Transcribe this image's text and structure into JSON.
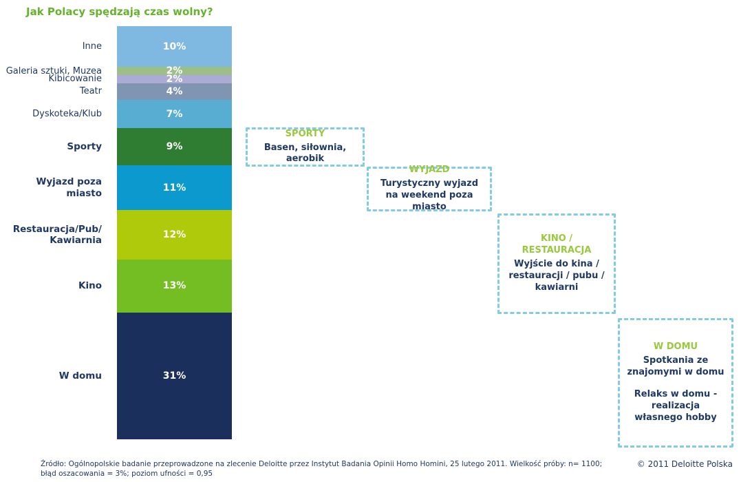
{
  "page": {
    "title": "Jak Polacy spędzają czas wolny?",
    "copyright": "© 2011 Deloitte Polska",
    "footer_line1": "Źródło: Ogólnopolskie badanie przeprowadzone na zlecenie Deloitte przez Instytut Badania Opinii Homo Homini, 25 lutego 2011. Wielkość próby: n= 1100;",
    "footer_line2": "błąd oszacowania = 3%; poziom ufności = 0,95"
  },
  "colors": {
    "title_green": "#66B22E",
    "callout_title_green": "#98C93C",
    "text_navy": "#1F3864",
    "callout_border_blue": "#82CBE5",
    "value_label_white": "#FFFFFF"
  },
  "chart_data": {
    "type": "bar",
    "subtype": "stacked_single_column",
    "orientation": "vertical",
    "order": "top_to_bottom",
    "title": "Jak Polacy spędzają czas wolny?",
    "unit": "%",
    "total_percent": 101,
    "segments": [
      {
        "label": "Inne",
        "value": 10,
        "color": "#7FB9E2",
        "bold": false
      },
      {
        "label": "Galeria sztuki, Muzea",
        "value": 2,
        "color": "#9CBF88",
        "bold": false
      },
      {
        "label": "Kibicowanie",
        "value": 2,
        "color": "#ACABD5",
        "bold": false
      },
      {
        "label": "Teatr",
        "value": 4,
        "color": "#8095B1",
        "bold": false
      },
      {
        "label": "Dyskoteka/Klub",
        "value": 7,
        "color": "#58ADD3",
        "bold": false
      },
      {
        "label": "Sporty",
        "value": 9,
        "color": "#2F7D32",
        "bold": true
      },
      {
        "label": "Wyjazd poza\nmiasto",
        "value": 11,
        "color": "#0C99CE",
        "bold": true
      },
      {
        "label": "Restauracja/Pub/\nKawiarnia",
        "value": 12,
        "color": "#AFCA0A",
        "bold": true
      },
      {
        "label": "Kino",
        "value": 13,
        "color": "#74BE24",
        "bold": true
      },
      {
        "label": "W domu",
        "value": 31,
        "color": "#1A2F5B",
        "bold": true
      }
    ]
  },
  "callouts": [
    {
      "title": "SPORTY",
      "body": [
        "Basen, siłownia, aerobik"
      ]
    },
    {
      "title": "WYJAZD",
      "body": [
        "Turystyczny wyjazd na weekend poza miasto"
      ]
    },
    {
      "title": "KINO /\nRESTAURACJA",
      "body": [
        "Wyjście do kina / restauracji / pubu / kawiarni"
      ]
    },
    {
      "title": "W DOMU",
      "body": [
        "Spotkania ze znajomymi w domu",
        "",
        "Relaks w domu - realizacja własnego hobby"
      ]
    }
  ]
}
